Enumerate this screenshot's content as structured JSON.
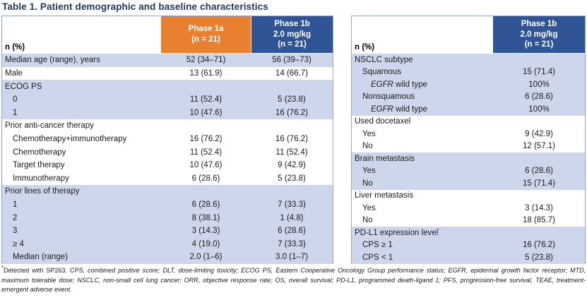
{
  "title": "Table 1. Patient demographic and baseline characteristics",
  "colors": {
    "title_text": "#1F3864",
    "phase1a_header": "#E8802F",
    "phase1b_header": "#2F5597",
    "band_row": "#CDD6EB",
    "table_border": "#95A5CF",
    "table_bottom_border": "#3E5C9E"
  },
  "left_table": {
    "header": {
      "label": "n (%)",
      "phase1a": [
        "Phase 1a",
        "(n = 21)"
      ],
      "phase1b": [
        "Phase 1b",
        "2.0 mg/kg",
        "(n = 21)"
      ]
    },
    "rows": [
      {
        "label": "Median age (range), years",
        "indent": 0,
        "band": true,
        "v1": "52 (34–71)",
        "v2": "56 (39–73)"
      },
      {
        "label": "Male",
        "indent": 0,
        "band": false,
        "v1": "13 (61.9)",
        "v2": "14 (66.7)"
      },
      {
        "label": "ECOG PS",
        "indent": 0,
        "band": true,
        "v1": "",
        "v2": ""
      },
      {
        "label": "0",
        "indent": 1,
        "band": true,
        "v1": "11 (52.4)",
        "v2": "5 (23.8)"
      },
      {
        "label": "1",
        "indent": 1,
        "band": true,
        "v1": "10 (47.6)",
        "v2": "16 (76.2)"
      },
      {
        "label": "Prior anti-cancer therapy",
        "indent": 0,
        "band": false,
        "v1": "",
        "v2": ""
      },
      {
        "label": "Chemotherapy+immunotherapy",
        "indent": 1,
        "band": false,
        "v1": "16 (76.2)",
        "v2": "16 (76.2)"
      },
      {
        "label": "Chemotherapy",
        "indent": 1,
        "band": false,
        "v1": "11 (52.4)",
        "v2": "11 (52.4)"
      },
      {
        "label": "Target therapy",
        "indent": 1,
        "band": false,
        "v1": "10 (47.6)",
        "v2": "9 (42.9)"
      },
      {
        "label": "Immunotherapy",
        "indent": 1,
        "band": false,
        "v1": "6 (28.6)",
        "v2": "5 (23.8)"
      },
      {
        "label": "Prior lines of therapy",
        "indent": 0,
        "band": true,
        "v1": "",
        "v2": ""
      },
      {
        "label": "1",
        "indent": 1,
        "band": true,
        "v1": "6 (28.6)",
        "v2": "7 (33.3)"
      },
      {
        "label": "2",
        "indent": 1,
        "band": true,
        "v1": "8 (38.1)",
        "v2": "1 (4.8)"
      },
      {
        "label": "3",
        "indent": 1,
        "band": true,
        "v1": "3 (14.3)",
        "v2": "6 (28.6)"
      },
      {
        "label": "≥ 4",
        "indent": 1,
        "band": true,
        "v1": "4 (19.0)",
        "v2": "7 (33.3)"
      },
      {
        "label": "Median (range)",
        "indent": 1,
        "band": true,
        "v1": "2.0 (1–6)",
        "v2": "3.0 (1–7)"
      }
    ]
  },
  "right_table": {
    "header": {
      "label": "n (%)",
      "phase1b": [
        "Phase 1b",
        "2.0 mg/kg",
        "(n = 21)"
      ]
    },
    "rows": [
      {
        "label": "NSCLC subtype",
        "indent": 0,
        "band": true,
        "v1": ""
      },
      {
        "label": "Squamous",
        "indent": 1,
        "band": true,
        "v1": "15 (71.4)"
      },
      {
        "label": "EGFR wild type",
        "italicize": "EGFR",
        "indent": 2,
        "band": true,
        "v1": "100%"
      },
      {
        "label": "Nonsquamous",
        "indent": 1,
        "band": true,
        "v1": "6 (28.6)"
      },
      {
        "label": "EGFR wild type",
        "italicize": "EGFR",
        "indent": 2,
        "band": true,
        "v1": "100%"
      },
      {
        "label": "Used docetaxel",
        "indent": 0,
        "band": false,
        "v1": ""
      },
      {
        "label": "Yes",
        "indent": 1,
        "band": false,
        "v1": "9 (42.9)"
      },
      {
        "label": "No",
        "indent": 1,
        "band": false,
        "v1": "12 (57.1)"
      },
      {
        "label": "Brain metastasis",
        "indent": 0,
        "band": true,
        "v1": ""
      },
      {
        "label": "Yes",
        "indent": 1,
        "band": true,
        "v1": "6 (28.6)"
      },
      {
        "label": "No",
        "indent": 1,
        "band": true,
        "v1": "15 (71.4)"
      },
      {
        "label": "Liver metastasis",
        "indent": 0,
        "band": false,
        "v1": ""
      },
      {
        "label": "Yes",
        "indent": 1,
        "band": false,
        "v1": "3 (14.3)"
      },
      {
        "label": "No",
        "indent": 1,
        "band": false,
        "v1": "18 (85.7)"
      },
      {
        "label": "PD-L1 expression level",
        "sup": "*",
        "indent": 0,
        "band": true,
        "v1": ""
      },
      {
        "label": "CPS ≥ 1",
        "indent": 1,
        "band": true,
        "v1": "16 (76.2)"
      },
      {
        "label": "CPS < 1",
        "indent": 1,
        "band": true,
        "v1": "5 (23.8)"
      }
    ]
  },
  "footnote": {
    "sup": "*",
    "roman": "Detected with SP263. ",
    "italic": "CPS, combined positive score; DLT, dose-limiting toxicity; ECOG PS, Eastern Cooperative Oncology Group performance status; EGFR, epidermal growth factor receptor; MTD, maximum tolerable dose; NSCLC, non-small cell lung cancer; ORR, objective response rate; OS, overall survival; PD-L1, programmed death-ligand 1; PFS, progression-free survival, TEAE, treatment-emergent adverse event."
  }
}
